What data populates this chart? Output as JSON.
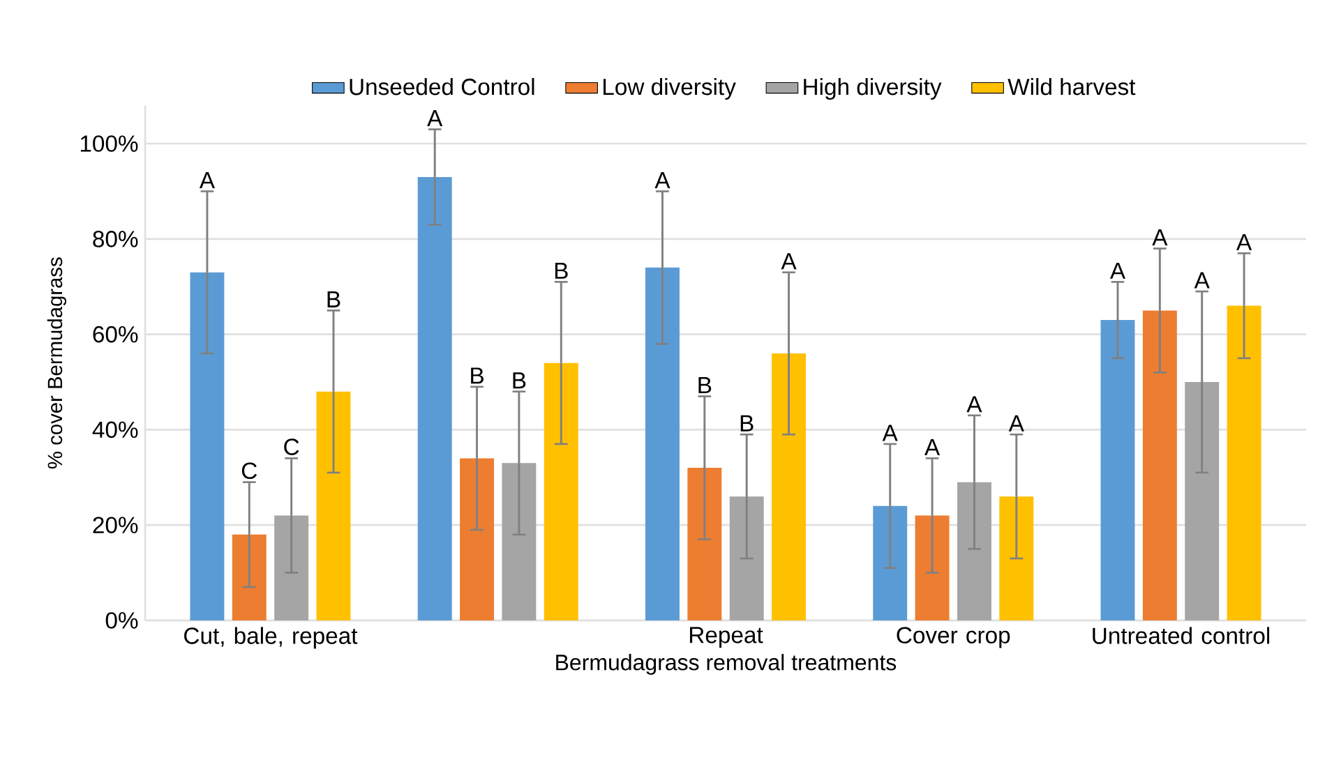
{
  "chart_data": {
    "type": "bar",
    "categories": [
      "Cut, bale, repeat",
      null,
      "Repeat",
      "Cover crop",
      "Untreated control"
    ],
    "xlabel": "Bermudagrass removal treatments",
    "ylabel": "% cover Bermudagrass",
    "ylim": [
      0,
      108
    ],
    "yticks": [
      {
        "value": 0,
        "label": "0%"
      },
      {
        "value": 20,
        "label": "20%"
      },
      {
        "value": 40,
        "label": "40%"
      },
      {
        "value": 60,
        "label": "60%"
      },
      {
        "value": 80,
        "label": "80%"
      },
      {
        "value": 100,
        "label": "100%"
      }
    ],
    "grid": "y",
    "legend": "top",
    "series": [
      {
        "name": "Unseeded Control",
        "color": "#5b9bd5",
        "values": [
          73,
          93,
          74,
          24,
          63
        ],
        "errors": [
          [
            56,
            90
          ],
          [
            83,
            103
          ],
          [
            58,
            90
          ],
          [
            11,
            37
          ],
          [
            55,
            71
          ]
        ]
      },
      {
        "name": "Low diversity",
        "color": "#ed7d31",
        "values": [
          18,
          34,
          32,
          22,
          65
        ],
        "errors": [
          [
            7,
            29
          ],
          [
            19,
            49
          ],
          [
            17,
            47
          ],
          [
            10,
            34
          ],
          [
            52,
            78
          ]
        ]
      },
      {
        "name": "High diversity",
        "color": "#a5a5a5",
        "values": [
          22,
          33,
          26,
          29,
          50
        ],
        "errors": [
          [
            10,
            34
          ],
          [
            18,
            48
          ],
          [
            13,
            39
          ],
          [
            15,
            43
          ],
          [
            31,
            69
          ]
        ]
      },
      {
        "name": "Wild harvest",
        "color": "#ffc000",
        "values": [
          48,
          54,
          56,
          26,
          66
        ],
        "errors": [
          [
            31,
            65
          ],
          [
            37,
            71
          ],
          [
            39,
            73
          ],
          [
            13,
            39
          ],
          [
            55,
            77
          ]
        ]
      }
    ],
    "annotations": [
      "A",
      "C",
      "C",
      "B",
      "A",
      "B",
      "B",
      "B",
      "A",
      "B",
      "B",
      "A",
      "A",
      "A",
      "A",
      "A",
      "A",
      "A",
      "A",
      "A"
    ]
  }
}
